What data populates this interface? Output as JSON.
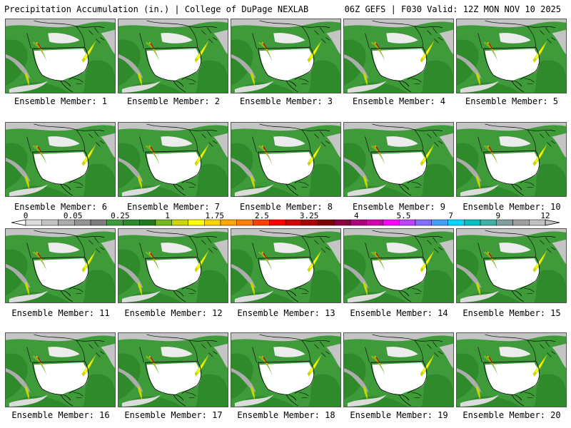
{
  "header": {
    "title": "Precipitation Accumulation (in.) | College of DuPage NEXLAB",
    "run_info": "06Z GEFS | F030 Valid: 12Z MON NOV 10 2025"
  },
  "members": [
    {
      "label": "Ensemble Member: 1"
    },
    {
      "label": "Ensemble Member: 2"
    },
    {
      "label": "Ensemble Member: 3"
    },
    {
      "label": "Ensemble Member: 4"
    },
    {
      "label": "Ensemble Member: 5"
    },
    {
      "label": "Ensemble Member: 6"
    },
    {
      "label": "Ensemble Member: 7"
    },
    {
      "label": "Ensemble Member: 8"
    },
    {
      "label": "Ensemble Member: 9"
    },
    {
      "label": "Ensemble Member: 10"
    },
    {
      "label": "Ensemble Member: 11"
    },
    {
      "label": "Ensemble Member: 12"
    },
    {
      "label": "Ensemble Member: 13"
    },
    {
      "label": "Ensemble Member: 14"
    },
    {
      "label": "Ensemble Member: 15"
    },
    {
      "label": "Ensemble Member: 16"
    },
    {
      "label": "Ensemble Member: 17"
    },
    {
      "label": "Ensemble Member: 18"
    },
    {
      "label": "Ensemble Member: 19"
    },
    {
      "label": "Ensemble Member: 20"
    }
  ],
  "colorbar": {
    "tick_labels": [
      "0",
      "0.05",
      "0.25",
      "1",
      "1.75",
      "2.5",
      "3.25",
      "4",
      "5.5",
      "7",
      "9",
      "12"
    ],
    "colors": [
      "#dcdcdc",
      "#c4c4c4",
      "#acacac",
      "#949494",
      "#7c7c7c",
      "#3f9a3a",
      "#2e8a2a",
      "#1f7a1f",
      "#74b71f",
      "#c8d800",
      "#ffff00",
      "#ffd200",
      "#ffa500",
      "#ff7f00",
      "#ff4000",
      "#ff0000",
      "#d40000",
      "#aa0000",
      "#800000",
      "#8a0040",
      "#b00080",
      "#d400b0",
      "#ff00ff",
      "#c040ff",
      "#8070ff",
      "#40a0ff",
      "#00d8ff",
      "#00c0c0",
      "#40b0a0",
      "#80a0a0",
      "#a0a0a0",
      "#c0c0c0"
    ]
  }
}
